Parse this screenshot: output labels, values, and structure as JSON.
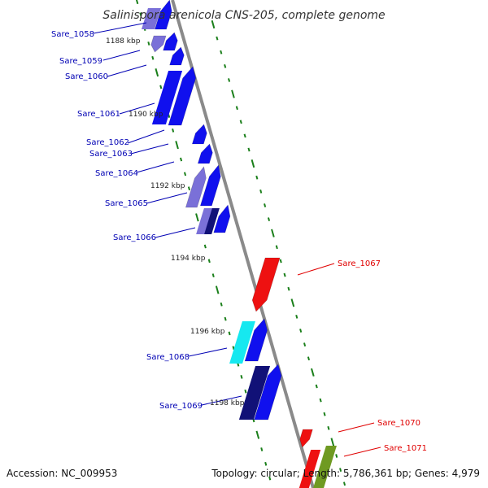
{
  "title": "Salinispora arenicola CNS-205, complete genome",
  "footer": {
    "accession": "Accession: NC_009953",
    "summary": "Topology: circular; Length: 5,786,361 bp; Genes: 4,979"
  },
  "colors": {
    "backbone": "#8a8a8a",
    "tick_green": "#1a7f1a",
    "label_blue": "#0000b4",
    "label_red": "#e00000",
    "gene_blue": "#1010ee",
    "gene_navy": "#111177",
    "gene_lavender": "#7a70d8",
    "gene_cyan": "#16e8f0",
    "gene_red": "#ee1111",
    "gene_olive": "#6f9a22"
  },
  "scale_marks": [
    "1188 kbp",
    "1190 kbp",
    "1192 kbp",
    "1194 kbp",
    "1196 kbp",
    "1198 kbp"
  ],
  "genes": [
    {
      "id": "Sare_1058",
      "strand": "-",
      "color": "gene_lavender"
    },
    {
      "id": "Sare_1059",
      "strand": "+",
      "color": "gene_blue"
    },
    {
      "id": "Sare_1060",
      "strand": "+",
      "color": "gene_blue"
    },
    {
      "id": "Sare_1061",
      "strand": "+",
      "color": "gene_blue"
    },
    {
      "id": "Sare_1062",
      "strand": "+",
      "color": "gene_blue"
    },
    {
      "id": "Sare_1063",
      "strand": "+",
      "color": "gene_blue"
    },
    {
      "id": "Sare_1064",
      "strand": "+",
      "color": "gene_blue"
    },
    {
      "id": "Sare_1065",
      "strand": "+",
      "color": "gene_navy"
    },
    {
      "id": "Sare_1066",
      "strand": "+",
      "color": "gene_blue"
    },
    {
      "id": "Sare_1067",
      "strand": "-",
      "color": "gene_red"
    },
    {
      "id": "Sare_1068",
      "strand": "+",
      "color": "gene_cyan"
    },
    {
      "id": "Sare_1069",
      "strand": "+",
      "color": "gene_navy"
    },
    {
      "id": "Sare_1070",
      "strand": "-",
      "color": "gene_red"
    },
    {
      "id": "Sare_1071",
      "strand": "-",
      "color": "gene_olive"
    }
  ]
}
